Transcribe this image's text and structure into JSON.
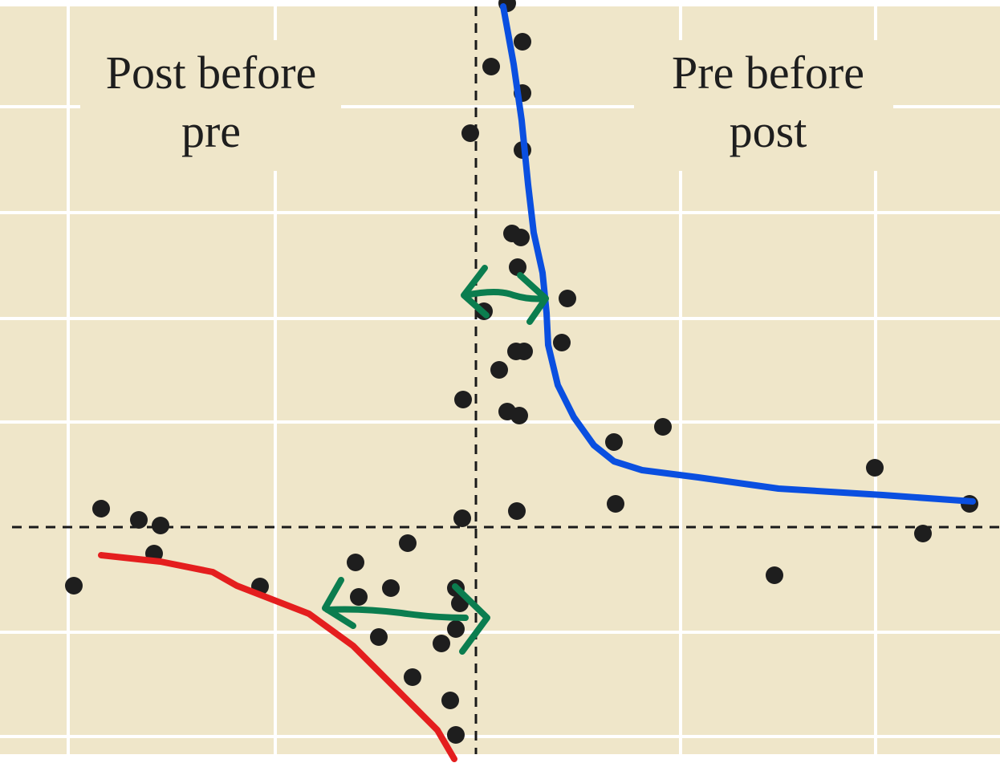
{
  "left_label": [
    "Post before",
    "pre"
  ],
  "right_label": [
    "Pre before",
    "post"
  ]
}
